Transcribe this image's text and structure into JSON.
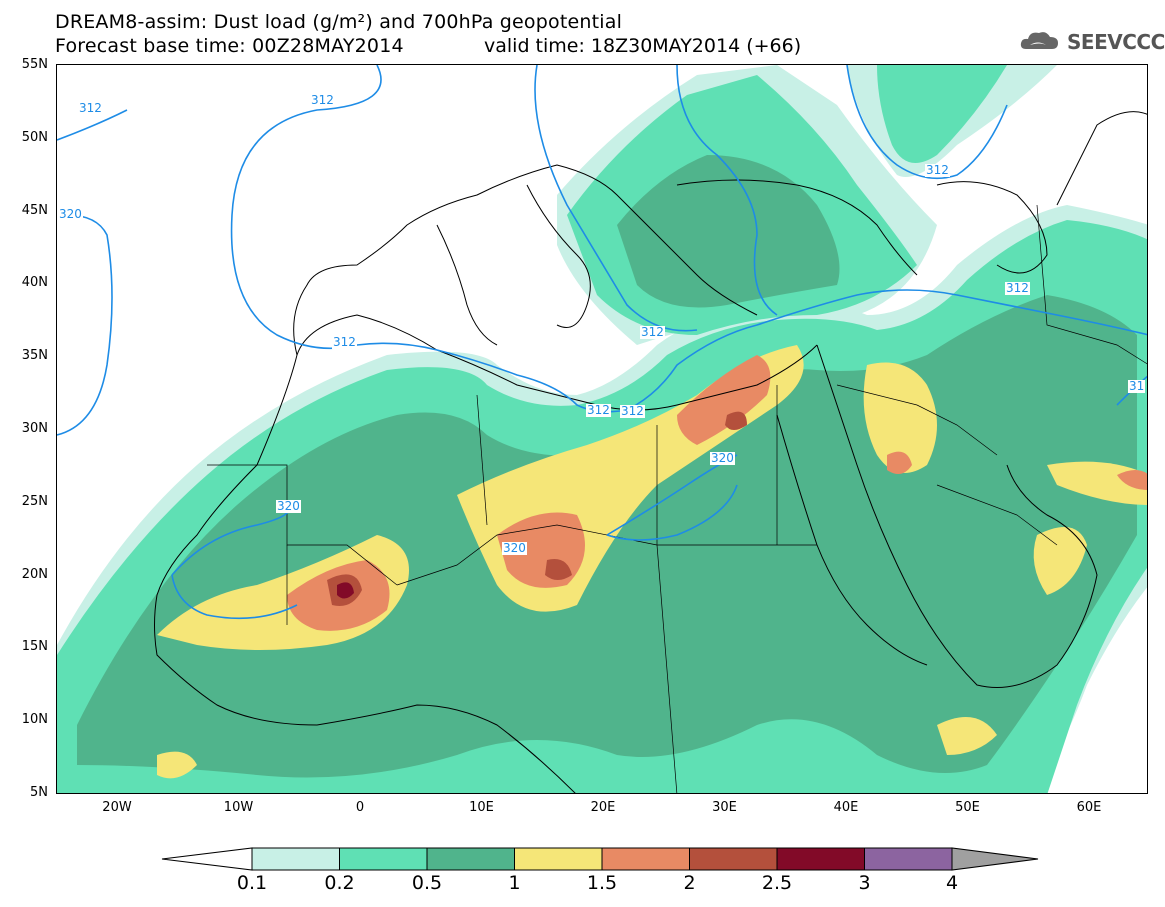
{
  "header": {
    "title_line1": "DREAM8-assim: Dust load (g/m²) and 700hPa geopotential",
    "title_line2": "Forecast base time: 00Z28MAY2014",
    "valid_time": "valid time: 18Z30MAY2014 (+66)",
    "logo_text": "SEEVCCC",
    "logo_icon": "cloud-logo-icon"
  },
  "axes": {
    "lat_labels": [
      "55N",
      "50N",
      "45N",
      "40N",
      "35N",
      "30N",
      "25N",
      "20N",
      "15N",
      "10N",
      "5N"
    ],
    "lon_labels": [
      "20W",
      "10W",
      "0",
      "10E",
      "20E",
      "30E",
      "40E",
      "50E",
      "60E"
    ]
  },
  "contours": {
    "labels": [
      "312",
      "312",
      "320",
      "312",
      "312",
      "320",
      "320",
      "312",
      "320",
      "312",
      "312",
      "312",
      "31"
    ]
  },
  "colorbar": {
    "labels": [
      "0.1",
      "0.2",
      "0.5",
      "1",
      "1.5",
      "2",
      "2.5",
      "3",
      "4"
    ],
    "colors": [
      "#c8f0e6",
      "#5fe0b4",
      "#50b48c",
      "#f5e678",
      "#e88a64",
      "#b4503c",
      "#820a28",
      "#8c64a0"
    ],
    "under_color": "#ffffff",
    "over_color": "#a0a0a0"
  },
  "colors": {
    "contour_line": "#1e8ce6",
    "coastline": "#000000"
  }
}
